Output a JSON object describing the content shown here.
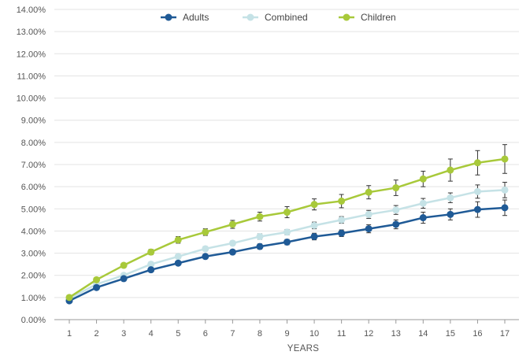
{
  "chart_data": {
    "type": "line",
    "title": "",
    "xlabel": "YEARS",
    "ylabel": "",
    "x": [
      1,
      2,
      3,
      4,
      5,
      6,
      7,
      8,
      9,
      10,
      11,
      12,
      13,
      14,
      15,
      16,
      17
    ],
    "ylim": [
      0,
      14
    ],
    "y_tick_labels": [
      "0.00%",
      "1.00%",
      "2.00%",
      "3.00%",
      "4.00%",
      "5.00%",
      "6.00%",
      "7.00%",
      "8.00%",
      "9.00%",
      "10.00%",
      "11.00%",
      "12.00%",
      "13.00%",
      "14.00%"
    ],
    "x_tick_labels": [
      "1",
      "2",
      "3",
      "4",
      "5",
      "6",
      "7",
      "8",
      "9",
      "10",
      "11",
      "12",
      "13",
      "14",
      "15",
      "16",
      "17"
    ],
    "legend_position": "top-center",
    "grid": "horizontal",
    "series": [
      {
        "name": "Adults",
        "color": "#1f5a96",
        "values": [
          0.85,
          1.45,
          1.85,
          2.25,
          2.55,
          2.85,
          3.05,
          3.3,
          3.5,
          3.75,
          3.9,
          4.1,
          4.3,
          4.6,
          4.75,
          4.97,
          5.05
        ],
        "error": [
          0.05,
          0.07,
          0.08,
          0.1,
          0.1,
          0.1,
          0.1,
          0.12,
          0.12,
          0.15,
          0.15,
          0.18,
          0.2,
          0.25,
          0.25,
          0.35,
          0.35
        ]
      },
      {
        "name": "Combined",
        "color": "#c5e2e6",
        "values": [
          0.95,
          1.6,
          2.0,
          2.5,
          2.85,
          3.2,
          3.45,
          3.75,
          3.95,
          4.25,
          4.5,
          4.75,
          4.95,
          5.25,
          5.5,
          5.78,
          5.85
        ],
        "error": [
          0.05,
          0.07,
          0.08,
          0.1,
          0.1,
          0.1,
          0.1,
          0.12,
          0.12,
          0.15,
          0.15,
          0.18,
          0.2,
          0.22,
          0.22,
          0.3,
          0.35
        ]
      },
      {
        "name": "Children",
        "color": "#a8c93a",
        "values": [
          1.0,
          1.8,
          2.45,
          3.05,
          3.6,
          3.95,
          4.3,
          4.65,
          4.85,
          5.2,
          5.35,
          5.75,
          5.95,
          6.35,
          6.75,
          7.08,
          7.25
        ],
        "error": [
          0.05,
          0.08,
          0.1,
          0.12,
          0.15,
          0.15,
          0.18,
          0.2,
          0.25,
          0.25,
          0.3,
          0.3,
          0.35,
          0.35,
          0.5,
          0.55,
          0.65
        ]
      }
    ]
  }
}
